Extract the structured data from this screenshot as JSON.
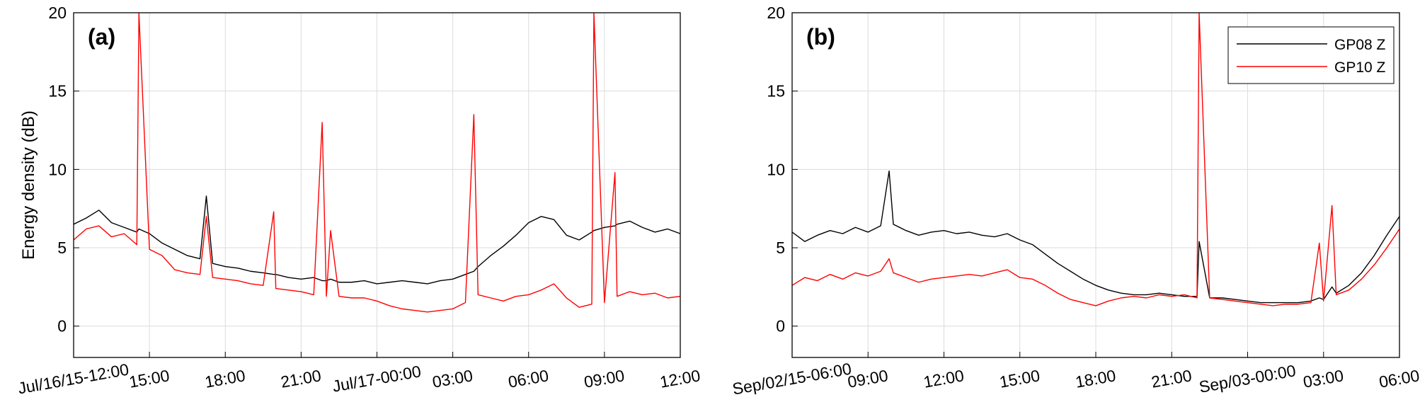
{
  "chart_data": [
    {
      "type": "line",
      "panel_label": "(a)",
      "ylabel": "Energy density (dB)",
      "x": [
        "2015-07-16T12:00",
        "2015-07-16T12:30",
        "2015-07-16T13:00",
        "2015-07-16T13:30",
        "2015-07-16T14:00",
        "2015-07-16T14:30",
        "2015-07-16T14:35",
        "2015-07-16T15:00",
        "2015-07-16T15:30",
        "2015-07-16T16:00",
        "2015-07-16T16:30",
        "2015-07-16T17:00",
        "2015-07-16T17:15",
        "2015-07-16T17:30",
        "2015-07-16T18:00",
        "2015-07-16T18:30",
        "2015-07-16T19:00",
        "2015-07-16T19:30",
        "2015-07-16T19:55",
        "2015-07-16T20:00",
        "2015-07-16T20:30",
        "2015-07-16T21:00",
        "2015-07-16T21:30",
        "2015-07-16T21:50",
        "2015-07-16T22:00",
        "2015-07-16T22:10",
        "2015-07-16T22:30",
        "2015-07-16T23:00",
        "2015-07-16T23:30",
        "2015-07-17T00:00",
        "2015-07-17T00:30",
        "2015-07-17T01:00",
        "2015-07-17T01:30",
        "2015-07-17T02:00",
        "2015-07-17T02:30",
        "2015-07-17T03:00",
        "2015-07-17T03:30",
        "2015-07-17T03:50",
        "2015-07-17T04:00",
        "2015-07-17T04:30",
        "2015-07-17T05:00",
        "2015-07-17T05:30",
        "2015-07-17T06:00",
        "2015-07-17T06:30",
        "2015-07-17T07:00",
        "2015-07-17T07:30",
        "2015-07-17T08:00",
        "2015-07-17T08:30",
        "2015-07-17T08:35",
        "2015-07-17T09:00",
        "2015-07-17T09:25",
        "2015-07-17T09:30",
        "2015-07-17T10:00",
        "2015-07-17T10:30",
        "2015-07-17T11:00",
        "2015-07-17T11:30",
        "2015-07-17T12:00"
      ],
      "series": [
        {
          "color": "#000000",
          "values": [
            6.5,
            6.9,
            7.4,
            6.6,
            6.3,
            6.0,
            6.2,
            5.9,
            5.3,
            4.9,
            4.5,
            4.3,
            8.3,
            4.0,
            3.8,
            3.7,
            3.5,
            3.4,
            3.3,
            3.3,
            3.1,
            3.0,
            3.1,
            2.9,
            2.9,
            3.0,
            2.8,
            2.8,
            2.9,
            2.7,
            2.8,
            2.9,
            2.8,
            2.7,
            2.9,
            3.0,
            3.3,
            3.5,
            3.8,
            4.5,
            5.1,
            5.8,
            6.6,
            7.0,
            6.8,
            5.8,
            5.5,
            6.0,
            6.1,
            6.3,
            6.4,
            6.5,
            6.7,
            6.3,
            6.0,
            6.2,
            5.9
          ]
        },
        {
          "color": "#ff0000",
          "values": [
            5.5,
            6.2,
            6.4,
            5.7,
            5.9,
            5.2,
            20,
            4.9,
            4.5,
            3.6,
            3.4,
            3.3,
            7.0,
            3.1,
            3.0,
            2.9,
            2.7,
            2.6,
            7.3,
            2.4,
            2.3,
            2.2,
            2.0,
            13,
            1.9,
            6.1,
            1.9,
            1.8,
            1.8,
            1.6,
            1.3,
            1.1,
            1.0,
            0.9,
            1.0,
            1.1,
            1.5,
            13.5,
            2.0,
            1.8,
            1.6,
            1.9,
            2.0,
            2.3,
            2.7,
            1.8,
            1.2,
            1.4,
            20,
            1.5,
            9.8,
            1.9,
            2.2,
            2.0,
            2.1,
            1.8,
            1.9
          ]
        }
      ],
      "xlim": [
        "2015-07-16T12:00",
        "2015-07-17T12:00"
      ],
      "xticks": [
        {
          "value": "2015-07-16T12:00",
          "label": "Jul/16/15-12:00"
        },
        {
          "value": "2015-07-16T15:00",
          "label": "15:00"
        },
        {
          "value": "2015-07-16T18:00",
          "label": "18:00"
        },
        {
          "value": "2015-07-16T21:00",
          "label": "21:00"
        },
        {
          "value": "2015-07-17T00:00",
          "label": "Jul/17-00:00"
        },
        {
          "value": "2015-07-17T03:00",
          "label": "03:00"
        },
        {
          "value": "2015-07-17T06:00",
          "label": "06:00"
        },
        {
          "value": "2015-07-17T09:00",
          "label": "09:00"
        },
        {
          "value": "2015-07-17T12:00",
          "label": "12:00"
        }
      ],
      "ylim": [
        -2,
        20
      ],
      "yticks": [
        0,
        5,
        10,
        15,
        20
      ],
      "grid": true
    },
    {
      "type": "line",
      "panel_label": "(b)",
      "x": [
        "2015-09-02T06:00",
        "2015-09-02T06:30",
        "2015-09-02T07:00",
        "2015-09-02T07:30",
        "2015-09-02T08:00",
        "2015-09-02T08:30",
        "2015-09-02T09:00",
        "2015-09-02T09:30",
        "2015-09-02T09:50",
        "2015-09-02T10:00",
        "2015-09-02T10:30",
        "2015-09-02T11:00",
        "2015-09-02T11:30",
        "2015-09-02T12:00",
        "2015-09-02T12:30",
        "2015-09-02T13:00",
        "2015-09-02T13:30",
        "2015-09-02T14:00",
        "2015-09-02T14:30",
        "2015-09-02T15:00",
        "2015-09-02T15:30",
        "2015-09-02T16:00",
        "2015-09-02T16:30",
        "2015-09-02T17:00",
        "2015-09-02T17:30",
        "2015-09-02T18:00",
        "2015-09-02T18:30",
        "2015-09-02T19:00",
        "2015-09-02T19:30",
        "2015-09-02T20:00",
        "2015-09-02T20:30",
        "2015-09-02T21:00",
        "2015-09-02T21:30",
        "2015-09-02T22:00",
        "2015-09-02T22:05",
        "2015-09-02T22:30",
        "2015-09-02T23:00",
        "2015-09-02T23:30",
        "2015-09-03T00:00",
        "2015-09-03T00:30",
        "2015-09-03T01:00",
        "2015-09-03T01:30",
        "2015-09-03T02:00",
        "2015-09-03T02:30",
        "2015-09-03T02:50",
        "2015-09-03T03:00",
        "2015-09-03T03:20",
        "2015-09-03T03:30",
        "2015-09-03T04:00",
        "2015-09-03T04:30",
        "2015-09-03T05:00",
        "2015-09-03T05:30",
        "2015-09-03T06:00"
      ],
      "series": [
        {
          "name": "GP08 Z",
          "color": "#000000",
          "values": [
            6.0,
            5.4,
            5.8,
            6.1,
            5.9,
            6.3,
            6.0,
            6.4,
            9.9,
            6.5,
            6.1,
            5.8,
            6.0,
            6.1,
            5.9,
            6.0,
            5.8,
            5.7,
            5.9,
            5.5,
            5.2,
            4.6,
            4.0,
            3.5,
            3.0,
            2.6,
            2.3,
            2.1,
            2.0,
            2.0,
            2.1,
            2.0,
            1.9,
            1.9,
            5.4,
            1.8,
            1.8,
            1.7,
            1.6,
            1.5,
            1.5,
            1.5,
            1.5,
            1.6,
            1.8,
            1.7,
            2.5,
            2.1,
            2.6,
            3.4,
            4.5,
            5.8,
            7.0
          ]
        },
        {
          "name": "GP10 Z",
          "color": "#ff0000",
          "values": [
            2.6,
            3.1,
            2.9,
            3.3,
            3.0,
            3.4,
            3.2,
            3.5,
            4.3,
            3.4,
            3.1,
            2.8,
            3.0,
            3.1,
            3.2,
            3.3,
            3.2,
            3.4,
            3.6,
            3.1,
            3.0,
            2.6,
            2.1,
            1.7,
            1.5,
            1.3,
            1.6,
            1.8,
            1.9,
            1.8,
            2.0,
            1.9,
            2.0,
            1.8,
            20,
            1.8,
            1.7,
            1.6,
            1.5,
            1.4,
            1.3,
            1.4,
            1.4,
            1.5,
            5.3,
            1.6,
            7.7,
            2.0,
            2.3,
            3.0,
            3.9,
            5.0,
            6.2
          ]
        }
      ],
      "xlim": [
        "2015-09-02T06:00",
        "2015-09-03T06:00"
      ],
      "xticks": [
        {
          "value": "2015-09-02T06:00",
          "label": "Sep/02/15-06:00"
        },
        {
          "value": "2015-09-02T09:00",
          "label": "09:00"
        },
        {
          "value": "2015-09-02T12:00",
          "label": "12:00"
        },
        {
          "value": "2015-09-02T15:00",
          "label": "15:00"
        },
        {
          "value": "2015-09-02T18:00",
          "label": "18:00"
        },
        {
          "value": "2015-09-02T21:00",
          "label": "21:00"
        },
        {
          "value": "2015-09-03T00:00",
          "label": "Sep/03-00:00"
        },
        {
          "value": "2015-09-03T03:00",
          "label": "03:00"
        },
        {
          "value": "2015-09-03T06:00",
          "label": "06:00"
        }
      ],
      "ylim": [
        -2,
        20
      ],
      "yticks": [
        0,
        5,
        10,
        15,
        20
      ],
      "grid": true,
      "legend": "upper right"
    }
  ]
}
